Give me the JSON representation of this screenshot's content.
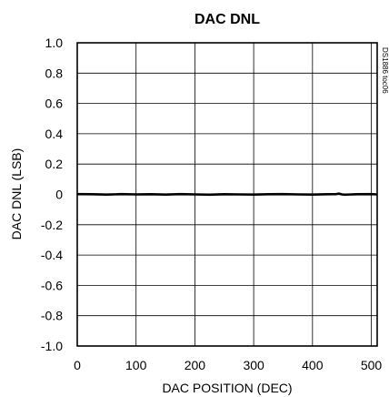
{
  "chart_data": {
    "type": "line",
    "title": "DAC DNL",
    "xlabel": "DAC POSITION (DEC)",
    "ylabel": "DAC DNL (LSB)",
    "side_code": "DS1886 toc06",
    "xlim": [
      0,
      510
    ],
    "ylim": [
      -1.0,
      1.0
    ],
    "x_ticks": [
      0,
      100,
      200,
      300,
      400,
      500
    ],
    "x_tick_labels": [
      "0",
      "100",
      "200",
      "300",
      "400",
      "500"
    ],
    "y_ticks": [
      1.0,
      0.8,
      0.6,
      0.4,
      0.2,
      0,
      -0.2,
      -0.4,
      -0.6,
      -0.8,
      -1.0
    ],
    "y_tick_labels": [
      "1.0",
      "0.8",
      "0.6",
      "0.4",
      "0.2",
      "0",
      "-0.2",
      "-0.4",
      "-0.6",
      "-0.8",
      "-1.0"
    ],
    "grid": true,
    "series": [
      {
        "x": [
          0,
          25,
          50,
          75,
          100,
          125,
          150,
          175,
          200,
          225,
          250,
          275,
          300,
          325,
          350,
          375,
          400,
          425,
          440,
          445,
          450,
          455,
          475,
          500,
          510
        ],
        "y": [
          0.002,
          0.001,
          -0.001,
          0.002,
          0.0,
          0.001,
          -0.001,
          0.002,
          0.0,
          -0.002,
          0.001,
          0.0,
          -0.001,
          0.001,
          0.002,
          0.0,
          -0.001,
          0.001,
          0.002,
          0.005,
          0.0,
          -0.002,
          0.001,
          0.002,
          0.0
        ]
      }
    ]
  }
}
